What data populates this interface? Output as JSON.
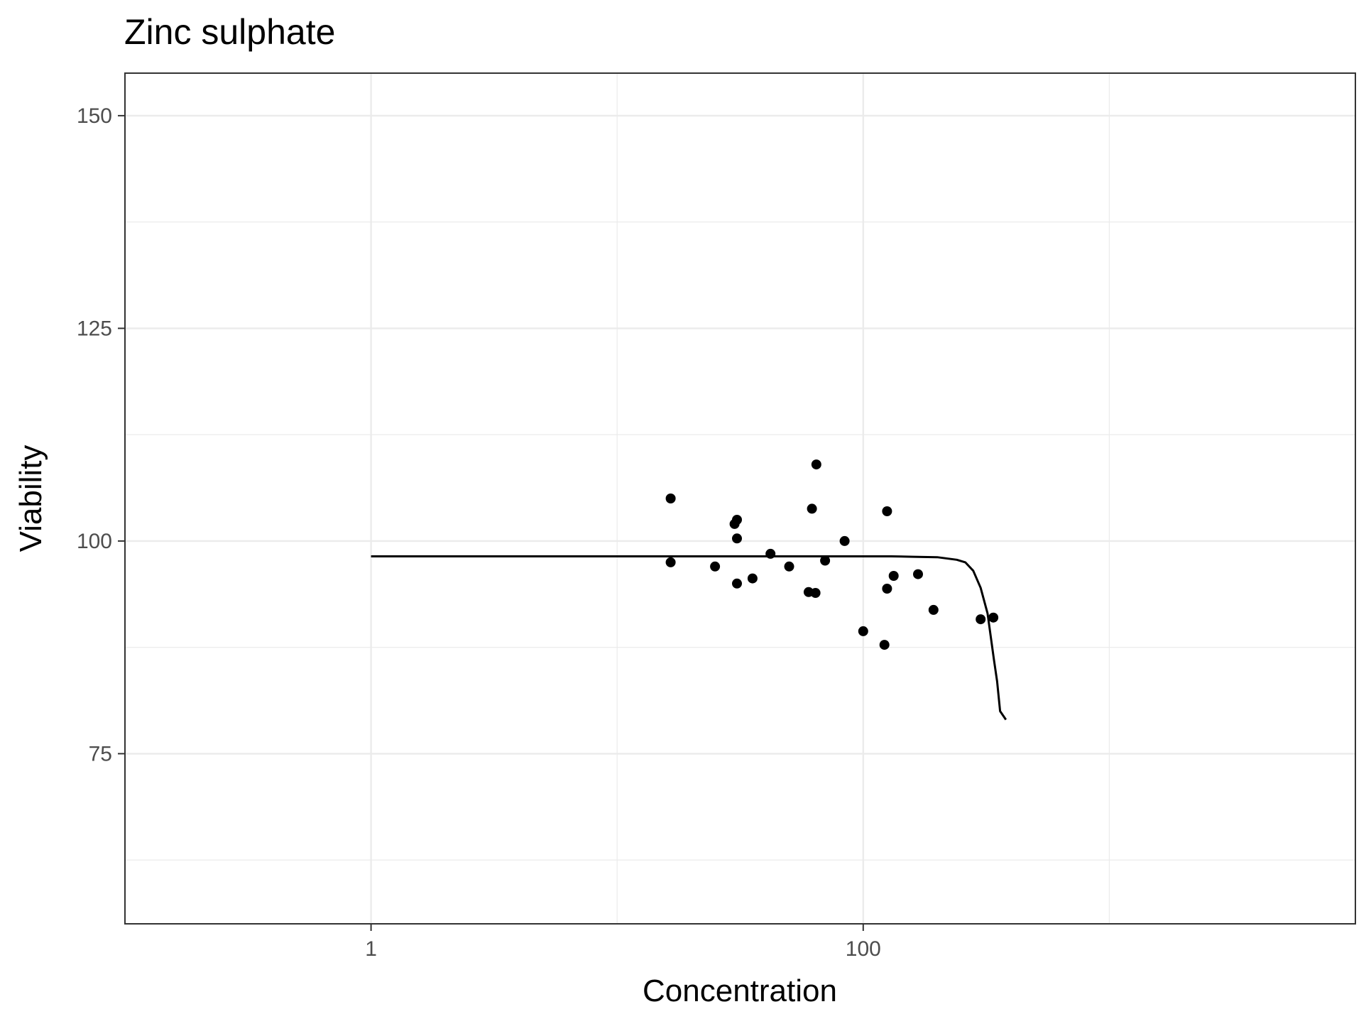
{
  "chart_data": {
    "type": "scatter",
    "title": "Zinc sulphate",
    "xlabel": "Concentration",
    "ylabel": "Viability",
    "x_scale": "log10",
    "xlim": [
      0.1,
      10000
    ],
    "ylim": [
      55,
      155
    ],
    "x_ticks": [
      1,
      100
    ],
    "x_tick_labels": [
      "1",
      "100"
    ],
    "y_ticks": [
      75,
      100,
      125,
      150
    ],
    "y_tick_labels": [
      "75",
      "100",
      "125",
      "150"
    ],
    "grid": true,
    "legend": "none",
    "colors": {
      "points": "#000000",
      "curve": "#000000",
      "grid": "#ebebeb",
      "panel_border": "#333333"
    },
    "series": [
      {
        "kind": "points",
        "x": [
          16.5,
          16.5,
          25,
          30,
          30.7,
          30.7,
          30.7,
          35.5,
          42,
          50,
          60,
          61.9,
          64,
          64.5,
          70,
          84,
          100,
          122,
          125,
          125,
          133,
          167,
          193,
          300,
          338
        ],
        "y": [
          105,
          97.5,
          97,
          102,
          102.5,
          100.3,
          95,
          95.6,
          98.5,
          97,
          94,
          103.8,
          93.9,
          109,
          97.7,
          100,
          89.4,
          87.8,
          94.4,
          103.5,
          95.9,
          96.1,
          91.9,
          90.8,
          91
        ]
      },
      {
        "kind": "fitted-curve",
        "x": [
          1,
          10,
          50,
          100,
          130,
          160,
          200,
          240,
          260,
          280,
          300,
          320,
          340,
          350,
          360,
          380
        ],
        "y": [
          98.2,
          98.2,
          98.2,
          98.2,
          98.2,
          98.15,
          98.1,
          97.8,
          97.5,
          96.5,
          94.5,
          91.5,
          86,
          83.5,
          80,
          79
        ]
      }
    ]
  }
}
